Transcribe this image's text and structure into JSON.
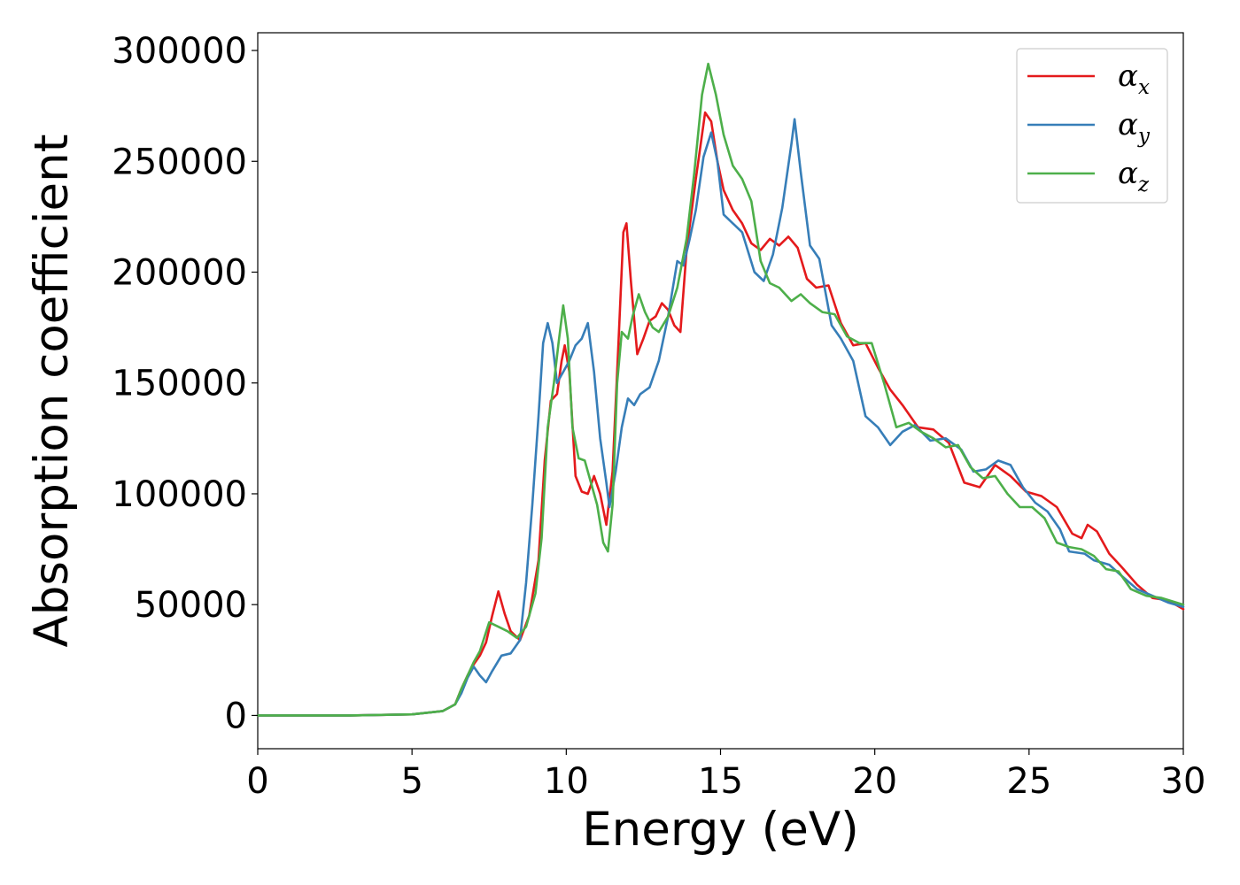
{
  "chart_data": {
    "type": "line",
    "xlabel": "Energy (eV)",
    "ylabel": "Absorption coefficient",
    "xlim": [
      0,
      30
    ],
    "ylim": [
      -15000,
      308000
    ],
    "xticks": [
      0,
      5,
      10,
      15,
      20,
      25,
      30
    ],
    "yticks": [
      0,
      50000,
      100000,
      150000,
      200000,
      250000,
      300000
    ],
    "grid": false,
    "legend_position": "top-right",
    "series": [
      {
        "name": "α_x",
        "label_main": "α",
        "label_sub": "x",
        "color": "#e41a1c",
        "points": [
          [
            0,
            0
          ],
          [
            3,
            0
          ],
          [
            5,
            500
          ],
          [
            6,
            2000
          ],
          [
            6.4,
            5000
          ],
          [
            6.6,
            12000
          ],
          [
            6.8,
            18000
          ],
          [
            7,
            23000
          ],
          [
            7.2,
            27000
          ],
          [
            7.4,
            33000
          ],
          [
            7.6,
            45000
          ],
          [
            7.8,
            56000
          ],
          [
            8,
            46000
          ],
          [
            8.2,
            38000
          ],
          [
            8.5,
            34000
          ],
          [
            8.8,
            45000
          ],
          [
            9.1,
            70000
          ],
          [
            9.3,
            115000
          ],
          [
            9.5,
            142000
          ],
          [
            9.7,
            145000
          ],
          [
            9.85,
            160000
          ],
          [
            9.95,
            167000
          ],
          [
            10.1,
            155000
          ],
          [
            10.3,
            108000
          ],
          [
            10.5,
            101000
          ],
          [
            10.7,
            100000
          ],
          [
            10.9,
            108000
          ],
          [
            11.1,
            100000
          ],
          [
            11.3,
            86000
          ],
          [
            11.5,
            110000
          ],
          [
            11.7,
            170000
          ],
          [
            11.85,
            218000
          ],
          [
            11.95,
            222000
          ],
          [
            12.1,
            195000
          ],
          [
            12.3,
            163000
          ],
          [
            12.5,
            170000
          ],
          [
            12.7,
            178000
          ],
          [
            12.9,
            180000
          ],
          [
            13.1,
            186000
          ],
          [
            13.3,
            183000
          ],
          [
            13.5,
            176000
          ],
          [
            13.7,
            173000
          ],
          [
            13.9,
            210000
          ],
          [
            14.2,
            242000
          ],
          [
            14.5,
            272000
          ],
          [
            14.7,
            268000
          ],
          [
            14.9,
            250000
          ],
          [
            15.1,
            237000
          ],
          [
            15.4,
            228000
          ],
          [
            15.7,
            222000
          ],
          [
            16,
            213000
          ],
          [
            16.3,
            210000
          ],
          [
            16.6,
            215000
          ],
          [
            16.9,
            212000
          ],
          [
            17.2,
            216000
          ],
          [
            17.5,
            211000
          ],
          [
            17.8,
            197000
          ],
          [
            18.1,
            193000
          ],
          [
            18.5,
            194000
          ],
          [
            18.9,
            177000
          ],
          [
            19.3,
            167000
          ],
          [
            19.7,
            168000
          ],
          [
            20.1,
            157000
          ],
          [
            20.5,
            147000
          ],
          [
            20.9,
            140000
          ],
          [
            21.4,
            130000
          ],
          [
            21.9,
            129000
          ],
          [
            22.4,
            123000
          ],
          [
            22.9,
            105000
          ],
          [
            23.4,
            103000
          ],
          [
            23.9,
            113000
          ],
          [
            24.4,
            108000
          ],
          [
            24.9,
            101000
          ],
          [
            25.4,
            99000
          ],
          [
            25.9,
            94000
          ],
          [
            26.4,
            82000
          ],
          [
            26.7,
            80000
          ],
          [
            26.9,
            86000
          ],
          [
            27.2,
            83000
          ],
          [
            27.6,
            73000
          ],
          [
            28,
            67000
          ],
          [
            28.5,
            59000
          ],
          [
            29,
            53000
          ],
          [
            29.5,
            52000
          ],
          [
            30,
            48000
          ]
        ]
      },
      {
        "name": "α_y",
        "label_main": "α",
        "label_sub": "y",
        "color": "#377eb8",
        "points": [
          [
            0,
            0
          ],
          [
            3,
            0
          ],
          [
            5,
            500
          ],
          [
            6,
            2000
          ],
          [
            6.4,
            5000
          ],
          [
            6.6,
            10000
          ],
          [
            6.8,
            17000
          ],
          [
            7,
            22000
          ],
          [
            7.2,
            18000
          ],
          [
            7.4,
            15000
          ],
          [
            7.6,
            20000
          ],
          [
            7.9,
            27000
          ],
          [
            8.2,
            28000
          ],
          [
            8.5,
            34000
          ],
          [
            8.7,
            60000
          ],
          [
            8.9,
            95000
          ],
          [
            9.1,
            135000
          ],
          [
            9.25,
            168000
          ],
          [
            9.4,
            177000
          ],
          [
            9.55,
            168000
          ],
          [
            9.7,
            150000
          ],
          [
            9.9,
            155000
          ],
          [
            10.1,
            160000
          ],
          [
            10.3,
            167000
          ],
          [
            10.5,
            170000
          ],
          [
            10.7,
            177000
          ],
          [
            10.9,
            155000
          ],
          [
            11.1,
            125000
          ],
          [
            11.3,
            105000
          ],
          [
            11.4,
            94000
          ],
          [
            11.6,
            110000
          ],
          [
            11.8,
            130000
          ],
          [
            12,
            143000
          ],
          [
            12.2,
            140000
          ],
          [
            12.4,
            145000
          ],
          [
            12.7,
            148000
          ],
          [
            13,
            160000
          ],
          [
            13.3,
            180000
          ],
          [
            13.6,
            205000
          ],
          [
            13.8,
            203000
          ],
          [
            14,
            215000
          ],
          [
            14.2,
            228000
          ],
          [
            14.45,
            252000
          ],
          [
            14.7,
            263000
          ],
          [
            14.9,
            250000
          ],
          [
            15.1,
            226000
          ],
          [
            15.4,
            222000
          ],
          [
            15.7,
            218000
          ],
          [
            16.1,
            200000
          ],
          [
            16.4,
            196000
          ],
          [
            16.7,
            208000
          ],
          [
            17,
            229000
          ],
          [
            17.3,
            258000
          ],
          [
            17.4,
            269000
          ],
          [
            17.6,
            245000
          ],
          [
            17.9,
            212000
          ],
          [
            18.2,
            206000
          ],
          [
            18.6,
            176000
          ],
          [
            18.9,
            170000
          ],
          [
            19.3,
            160000
          ],
          [
            19.7,
            135000
          ],
          [
            20.1,
            130000
          ],
          [
            20.5,
            122000
          ],
          [
            20.9,
            128000
          ],
          [
            21.3,
            131000
          ],
          [
            21.8,
            124000
          ],
          [
            22.3,
            125000
          ],
          [
            22.8,
            120000
          ],
          [
            23.2,
            110000
          ],
          [
            23.6,
            111000
          ],
          [
            24,
            115000
          ],
          [
            24.4,
            113000
          ],
          [
            24.8,
            103000
          ],
          [
            25.2,
            96000
          ],
          [
            25.6,
            92000
          ],
          [
            26,
            84000
          ],
          [
            26.3,
            74000
          ],
          [
            26.8,
            73000
          ],
          [
            27.1,
            70000
          ],
          [
            27.6,
            68000
          ],
          [
            28,
            63000
          ],
          [
            28.5,
            57000
          ],
          [
            29,
            54000
          ],
          [
            29.5,
            51000
          ],
          [
            30,
            49000
          ]
        ]
      },
      {
        "name": "α_z",
        "label_main": "α",
        "label_sub": "z",
        "color": "#4daf4a",
        "points": [
          [
            0,
            0
          ],
          [
            3,
            0
          ],
          [
            5,
            500
          ],
          [
            6,
            2000
          ],
          [
            6.4,
            5000
          ],
          [
            6.6,
            12000
          ],
          [
            6.8,
            18000
          ],
          [
            7,
            24000
          ],
          [
            7.2,
            29000
          ],
          [
            7.5,
            42000
          ],
          [
            7.8,
            40000
          ],
          [
            8.1,
            38000
          ],
          [
            8.4,
            35000
          ],
          [
            8.7,
            40000
          ],
          [
            9,
            55000
          ],
          [
            9.2,
            80000
          ],
          [
            9.4,
            130000
          ],
          [
            9.6,
            150000
          ],
          [
            9.75,
            168000
          ],
          [
            9.9,
            185000
          ],
          [
            10.05,
            170000
          ],
          [
            10.2,
            130000
          ],
          [
            10.4,
            116000
          ],
          [
            10.6,
            115000
          ],
          [
            10.8,
            105000
          ],
          [
            11,
            95000
          ],
          [
            11.2,
            78000
          ],
          [
            11.35,
            74000
          ],
          [
            11.5,
            95000
          ],
          [
            11.65,
            150000
          ],
          [
            11.8,
            173000
          ],
          [
            12,
            170000
          ],
          [
            12.15,
            180000
          ],
          [
            12.35,
            190000
          ],
          [
            12.55,
            182000
          ],
          [
            12.8,
            175000
          ],
          [
            13,
            173000
          ],
          [
            13.3,
            180000
          ],
          [
            13.6,
            193000
          ],
          [
            13.9,
            215000
          ],
          [
            14.15,
            245000
          ],
          [
            14.4,
            280000
          ],
          [
            14.6,
            294000
          ],
          [
            14.85,
            280000
          ],
          [
            15.1,
            262000
          ],
          [
            15.4,
            248000
          ],
          [
            15.7,
            242000
          ],
          [
            16,
            232000
          ],
          [
            16.3,
            205000
          ],
          [
            16.6,
            195000
          ],
          [
            16.9,
            193000
          ],
          [
            17.3,
            187000
          ],
          [
            17.6,
            190000
          ],
          [
            17.9,
            186000
          ],
          [
            18.3,
            182000
          ],
          [
            18.7,
            181000
          ],
          [
            19.1,
            171000
          ],
          [
            19.5,
            168000
          ],
          [
            19.9,
            168000
          ],
          [
            20.3,
            150000
          ],
          [
            20.7,
            130000
          ],
          [
            21.1,
            132000
          ],
          [
            21.5,
            128000
          ],
          [
            21.9,
            125000
          ],
          [
            22.3,
            121000
          ],
          [
            22.7,
            122000
          ],
          [
            23.1,
            112000
          ],
          [
            23.5,
            107000
          ],
          [
            23.9,
            108000
          ],
          [
            24.3,
            100000
          ],
          [
            24.7,
            94000
          ],
          [
            25.1,
            94000
          ],
          [
            25.5,
            89000
          ],
          [
            25.9,
            78000
          ],
          [
            26.3,
            76000
          ],
          [
            26.7,
            75000
          ],
          [
            27.1,
            72000
          ],
          [
            27.5,
            66000
          ],
          [
            27.9,
            65000
          ],
          [
            28.3,
            57000
          ],
          [
            28.8,
            54000
          ],
          [
            29.3,
            53000
          ],
          [
            30,
            50000
          ]
        ]
      }
    ]
  }
}
